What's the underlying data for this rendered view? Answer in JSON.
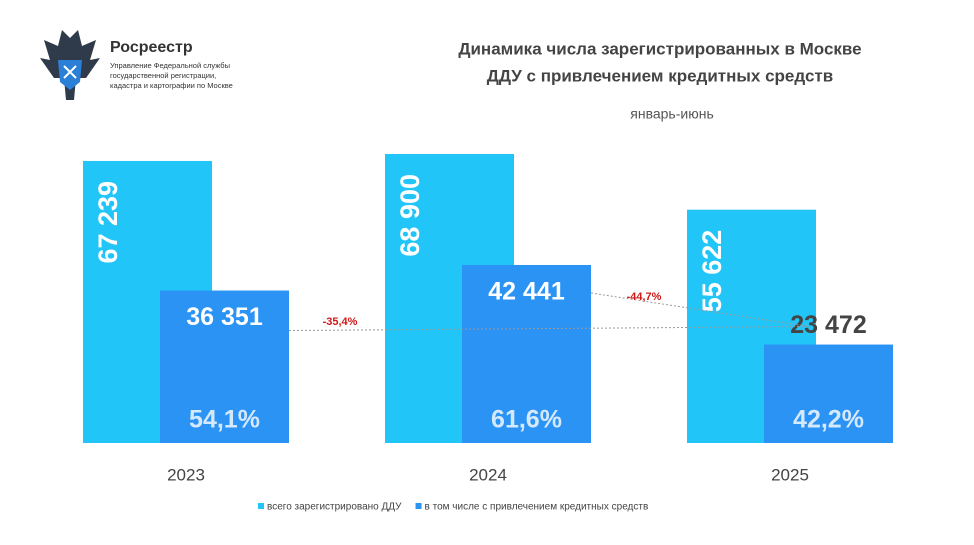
{
  "org": {
    "name": "Росреестр",
    "lines": [
      "Управление Федеральной службы",
      "государственной регистрации,",
      "кадастра и картографии по Москве"
    ]
  },
  "chart_data": {
    "type": "bar",
    "title": [
      "Динамика числа зарегистрированных в Москве",
      "ДДУ с привлечением кредитных средств"
    ],
    "subtitle": "январь-июнь",
    "categories": [
      "2023",
      "2024",
      "2025"
    ],
    "series": [
      {
        "name": "всего зарегистрировано ДДУ",
        "color": "#22c5f7",
        "values": [
          67239,
          68900,
          55622
        ],
        "value_labels": [
          "67 239",
          "68 900",
          "55 622"
        ]
      },
      {
        "name": "в том числе с привлечением кредитных средств",
        "color": "#2b93f4",
        "values": [
          36351,
          42441,
          23472
        ],
        "value_labels": [
          "36 351",
          "42 441",
          "23 472"
        ],
        "shares": [
          54.1,
          61.6,
          42.2
        ],
        "share_labels": [
          "54,1%",
          "61,6%",
          "42,2%"
        ]
      }
    ],
    "changes": [
      {
        "value": -35.4,
        "label": "-35,4%"
      },
      {
        "value": -44.7,
        "label": "-44,7%"
      }
    ]
  }
}
